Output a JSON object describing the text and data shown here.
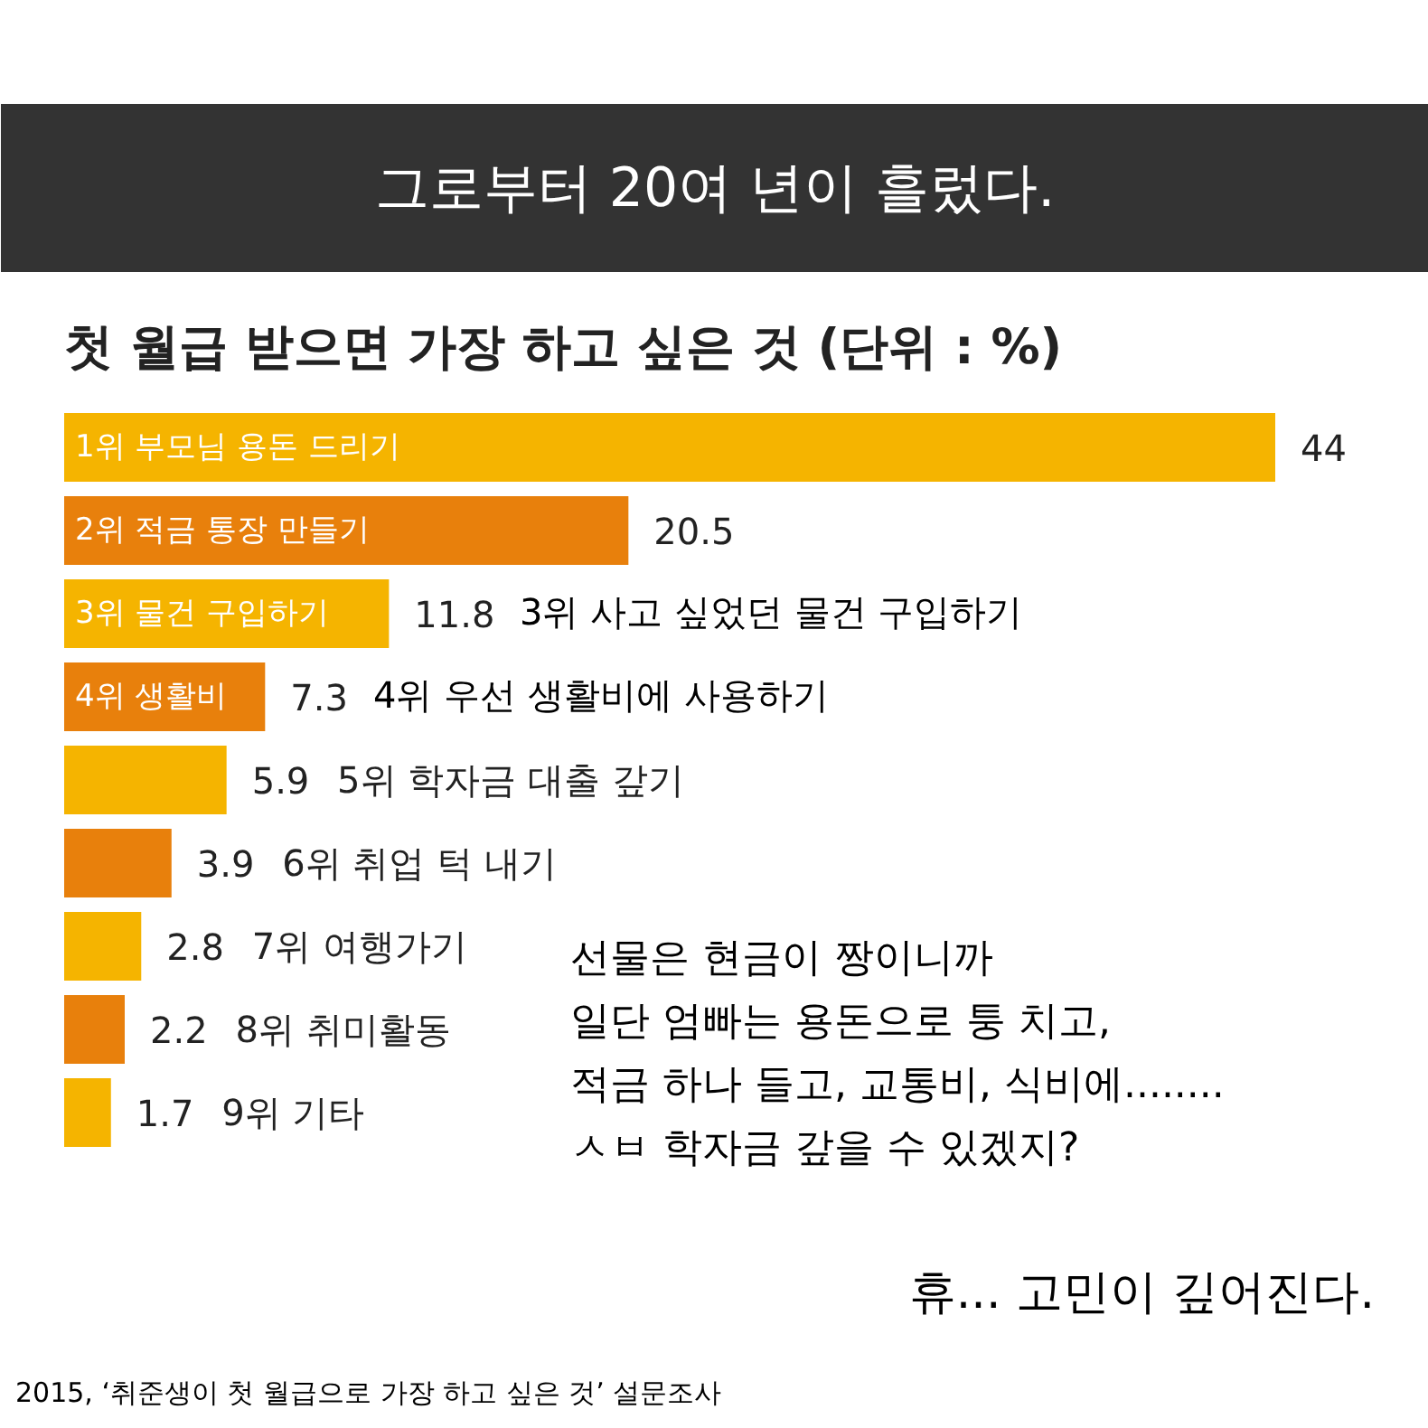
{
  "chart_data": {
    "type": "bar",
    "orientation": "horizontal",
    "title": "그로부터 20여 년이 흘렀다.",
    "subtitle": "첫 월급 받으면 가장 하고 싶은 것 (단위 : %)",
    "categories": [
      "1위 부모님 용돈 드리기",
      "2위 적금 통장 만들기",
      "3위 물건 구입하기",
      "4위 생활비",
      "5위 학자금 대출 갚기",
      "6위 취업 턱 내기",
      "7위 여행가기",
      "8위 취미활동",
      "9위 기타"
    ],
    "values": [
      44,
      20.5,
      11.8,
      7.3,
      5.9,
      3.9,
      2.8,
      2.2,
      1.7
    ],
    "colors": [
      "#f5b400",
      "#e8800c",
      "#f5b400",
      "#e8800c",
      "#f5b400",
      "#e8800c",
      "#f5b400",
      "#e8800c",
      "#f5b400"
    ],
    "data_labels": true,
    "annotations": [
      "3위 사고 싶었던 물건 구입하기",
      "4위 우선 생활비에 사용하기",
      "선물은 현금이 짱이니까",
      "일단 엄빠는 용돈으로 퉁 치고,",
      "적금 하나 들고, 교통비, 식비에........",
      "ㅅㅂ 학자금 갚을 수 있겠지?",
      "휴... 고민이 깊어진다.",
      "2015, ‘취준생이 첫 월급으로 가장 하고 싶은 것’ 설문조사"
    ]
  }
}
